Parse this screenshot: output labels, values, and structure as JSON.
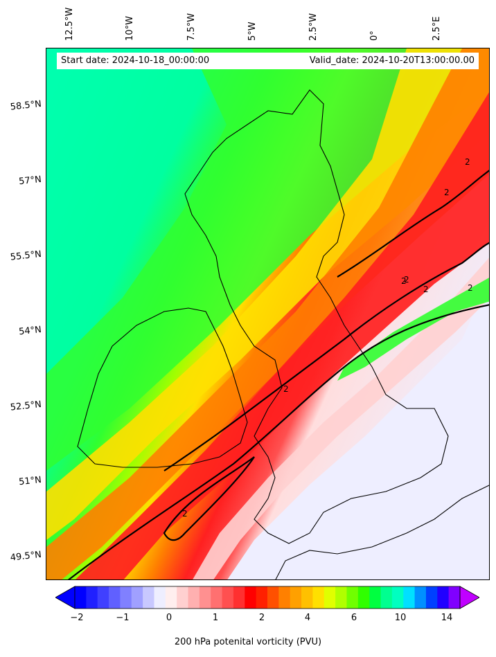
{
  "header": {
    "start_date": "Start date: 2024-10-18_00:00:00",
    "valid_date": "Valid_date: 2024-10-20T13:00:00.00"
  },
  "longitude_labels": [
    "12.5°W",
    "10°W",
    "7.5°W",
    "5°W",
    "2.5°W",
    "0°",
    "2.5°E"
  ],
  "latitude_labels": [
    "58.5°N",
    "57°N",
    "55.5°N",
    "54°N",
    "52.5°N",
    "51°N",
    "49.5°N"
  ],
  "contour_labels": [
    "2",
    "2",
    "2",
    "2",
    "2",
    "2",
    "2",
    "2"
  ],
  "colorbar": {
    "title": "200 hPa potenital vorticity (PVU)",
    "tick_labels": [
      "−2",
      "−1",
      "0",
      "1",
      "2",
      "4",
      "6",
      "10",
      "14"
    ],
    "colors": [
      "#0000ff",
      "#2020ff",
      "#4040ff",
      "#6060ff",
      "#8080ff",
      "#a0a0ff",
      "#c8c8ff",
      "#eeeeff",
      "#ffeeee",
      "#ffd0d0",
      "#ffb0b0",
      "#ff9090",
      "#ff7070",
      "#ff5050",
      "#ff3030",
      "#ff0000",
      "#ff2000",
      "#ff5000",
      "#ff8000",
      "#ffa000",
      "#ffc000",
      "#ffe000",
      "#e0ff00",
      "#b0ff00",
      "#70ff00",
      "#30ff00",
      "#00ff40",
      "#00ff90",
      "#00ffc0",
      "#00e0ff",
      "#0090ff",
      "#0040ff",
      "#2000ff",
      "#8000ff"
    ],
    "extend_min_color": "#0000ff",
    "extend_max_color": "#c000ff"
  },
  "map_colors": {
    "background_high": "#00ffb0",
    "band_green": "#30ff30",
    "band_yellow": "#ffe000",
    "band_orange": "#ff8000",
    "band_red": "#ff2020",
    "low_pv": "#eeeeff",
    "coast": "#000000"
  }
}
